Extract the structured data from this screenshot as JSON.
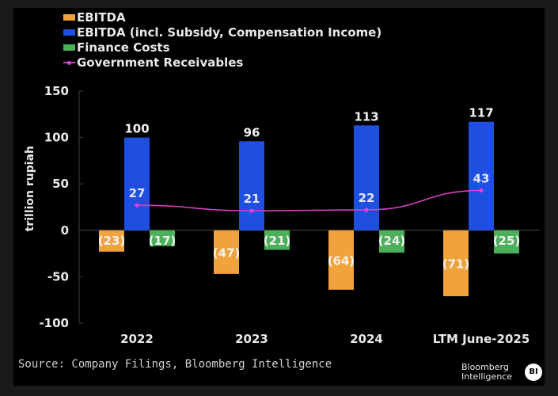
{
  "chart_data": {
    "type": "bar",
    "title": "",
    "xlabel": "",
    "ylabel": "trillion rupiah",
    "ylim": [
      -100,
      150
    ],
    "yticks": [
      150,
      100,
      50,
      0,
      -50,
      -100
    ],
    "ytick_labels": [
      "150",
      "100",
      "50",
      "0",
      "-50",
      "-100"
    ],
    "categories": [
      "2022",
      "2023",
      "2024",
      "LTM June-2025"
    ],
    "series": [
      {
        "name": "EBITDA",
        "type": "bar",
        "color": "#f0a33c",
        "values": [
          -23,
          -47,
          -64,
          -71
        ],
        "labels": [
          "(23)",
          "(47)",
          "(64)",
          "(71)"
        ]
      },
      {
        "name": "EBITDA (incl. Subsidy, Compensation Income)",
        "type": "bar",
        "color": "#1f4fe0",
        "values": [
          100,
          96,
          113,
          117
        ],
        "labels": [
          "100",
          "96",
          "113",
          "117"
        ]
      },
      {
        "name": "Finance Costs",
        "type": "bar",
        "color": "#4caf5a",
        "values": [
          -17,
          -21,
          -24,
          -25
        ],
        "labels": [
          "(17)",
          "(21)",
          "(24)",
          "(25)"
        ]
      },
      {
        "name": "Government Receivables",
        "type": "line",
        "color": "#d63fbf",
        "values": [
          27,
          21,
          22,
          43
        ],
        "labels": [
          "27",
          "21",
          "22",
          "43"
        ]
      }
    ],
    "legend_position": "top-left",
    "grid": false
  },
  "footer": {
    "source": "Source: Company Filings, Bloomberg Intelligence",
    "brand_line1": "Bloomberg",
    "brand_line2": "Intelligence",
    "brand_badge": "BI"
  }
}
